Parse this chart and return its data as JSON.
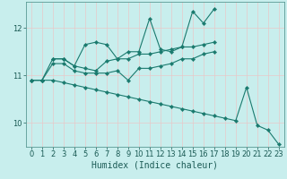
{
  "xlabel": "Humidex (Indice chaleur)",
  "xlim": [
    -0.5,
    23.5
  ],
  "ylim": [
    9.5,
    12.55
  ],
  "yticks": [
    10,
    11,
    12
  ],
  "xticks": [
    0,
    1,
    2,
    3,
    4,
    5,
    6,
    7,
    8,
    9,
    10,
    11,
    12,
    13,
    14,
    15,
    16,
    17,
    18,
    19,
    20,
    21,
    22,
    23
  ],
  "bg_color": "#c8eeed",
  "grid_color": "#e8c8c8",
  "line_color": "#1a7a6e",
  "lines": [
    {
      "x": [
        0,
        1,
        2,
        3,
        4,
        5,
        6,
        7,
        8,
        9,
        10,
        11,
        12,
        13,
        14,
        15,
        16,
        17
      ],
      "y": [
        10.9,
        10.9,
        11.35,
        11.35,
        11.2,
        11.65,
        11.7,
        11.65,
        11.35,
        11.5,
        11.5,
        12.2,
        11.55,
        11.5,
        11.6,
        12.35,
        12.1,
        12.4
      ]
    },
    {
      "x": [
        2,
        3,
        4,
        5,
        6,
        7,
        8,
        9,
        10,
        11,
        12,
        13,
        14,
        15,
        16,
        17
      ],
      "y": [
        11.35,
        11.35,
        11.2,
        11.15,
        11.1,
        11.3,
        11.35,
        11.35,
        11.45,
        11.45,
        11.5,
        11.55,
        11.6,
        11.6,
        11.65,
        11.7
      ]
    },
    {
      "x": [
        0,
        1,
        2,
        3,
        4,
        5,
        6,
        7,
        8,
        9,
        10,
        11,
        12,
        13,
        14,
        15,
        16,
        17
      ],
      "y": [
        10.9,
        10.9,
        11.25,
        11.25,
        11.1,
        11.05,
        11.05,
        11.05,
        11.1,
        10.9,
        11.15,
        11.15,
        11.2,
        11.25,
        11.35,
        11.35,
        11.45,
        11.5
      ]
    },
    {
      "x": [
        0,
        1,
        2,
        3,
        4,
        5,
        6,
        7,
        8,
        9,
        10,
        11,
        12,
        13,
        14,
        15,
        16,
        17,
        18,
        19,
        20,
        21,
        22,
        23
      ],
      "y": [
        10.9,
        10.9,
        10.9,
        10.85,
        10.8,
        10.75,
        10.7,
        10.65,
        10.6,
        10.55,
        10.5,
        10.45,
        10.4,
        10.35,
        10.3,
        10.25,
        10.2,
        10.15,
        10.1,
        10.05,
        10.75,
        9.95,
        9.85,
        9.55
      ]
    }
  ],
  "font_size": 7,
  "tick_font_size": 6
}
